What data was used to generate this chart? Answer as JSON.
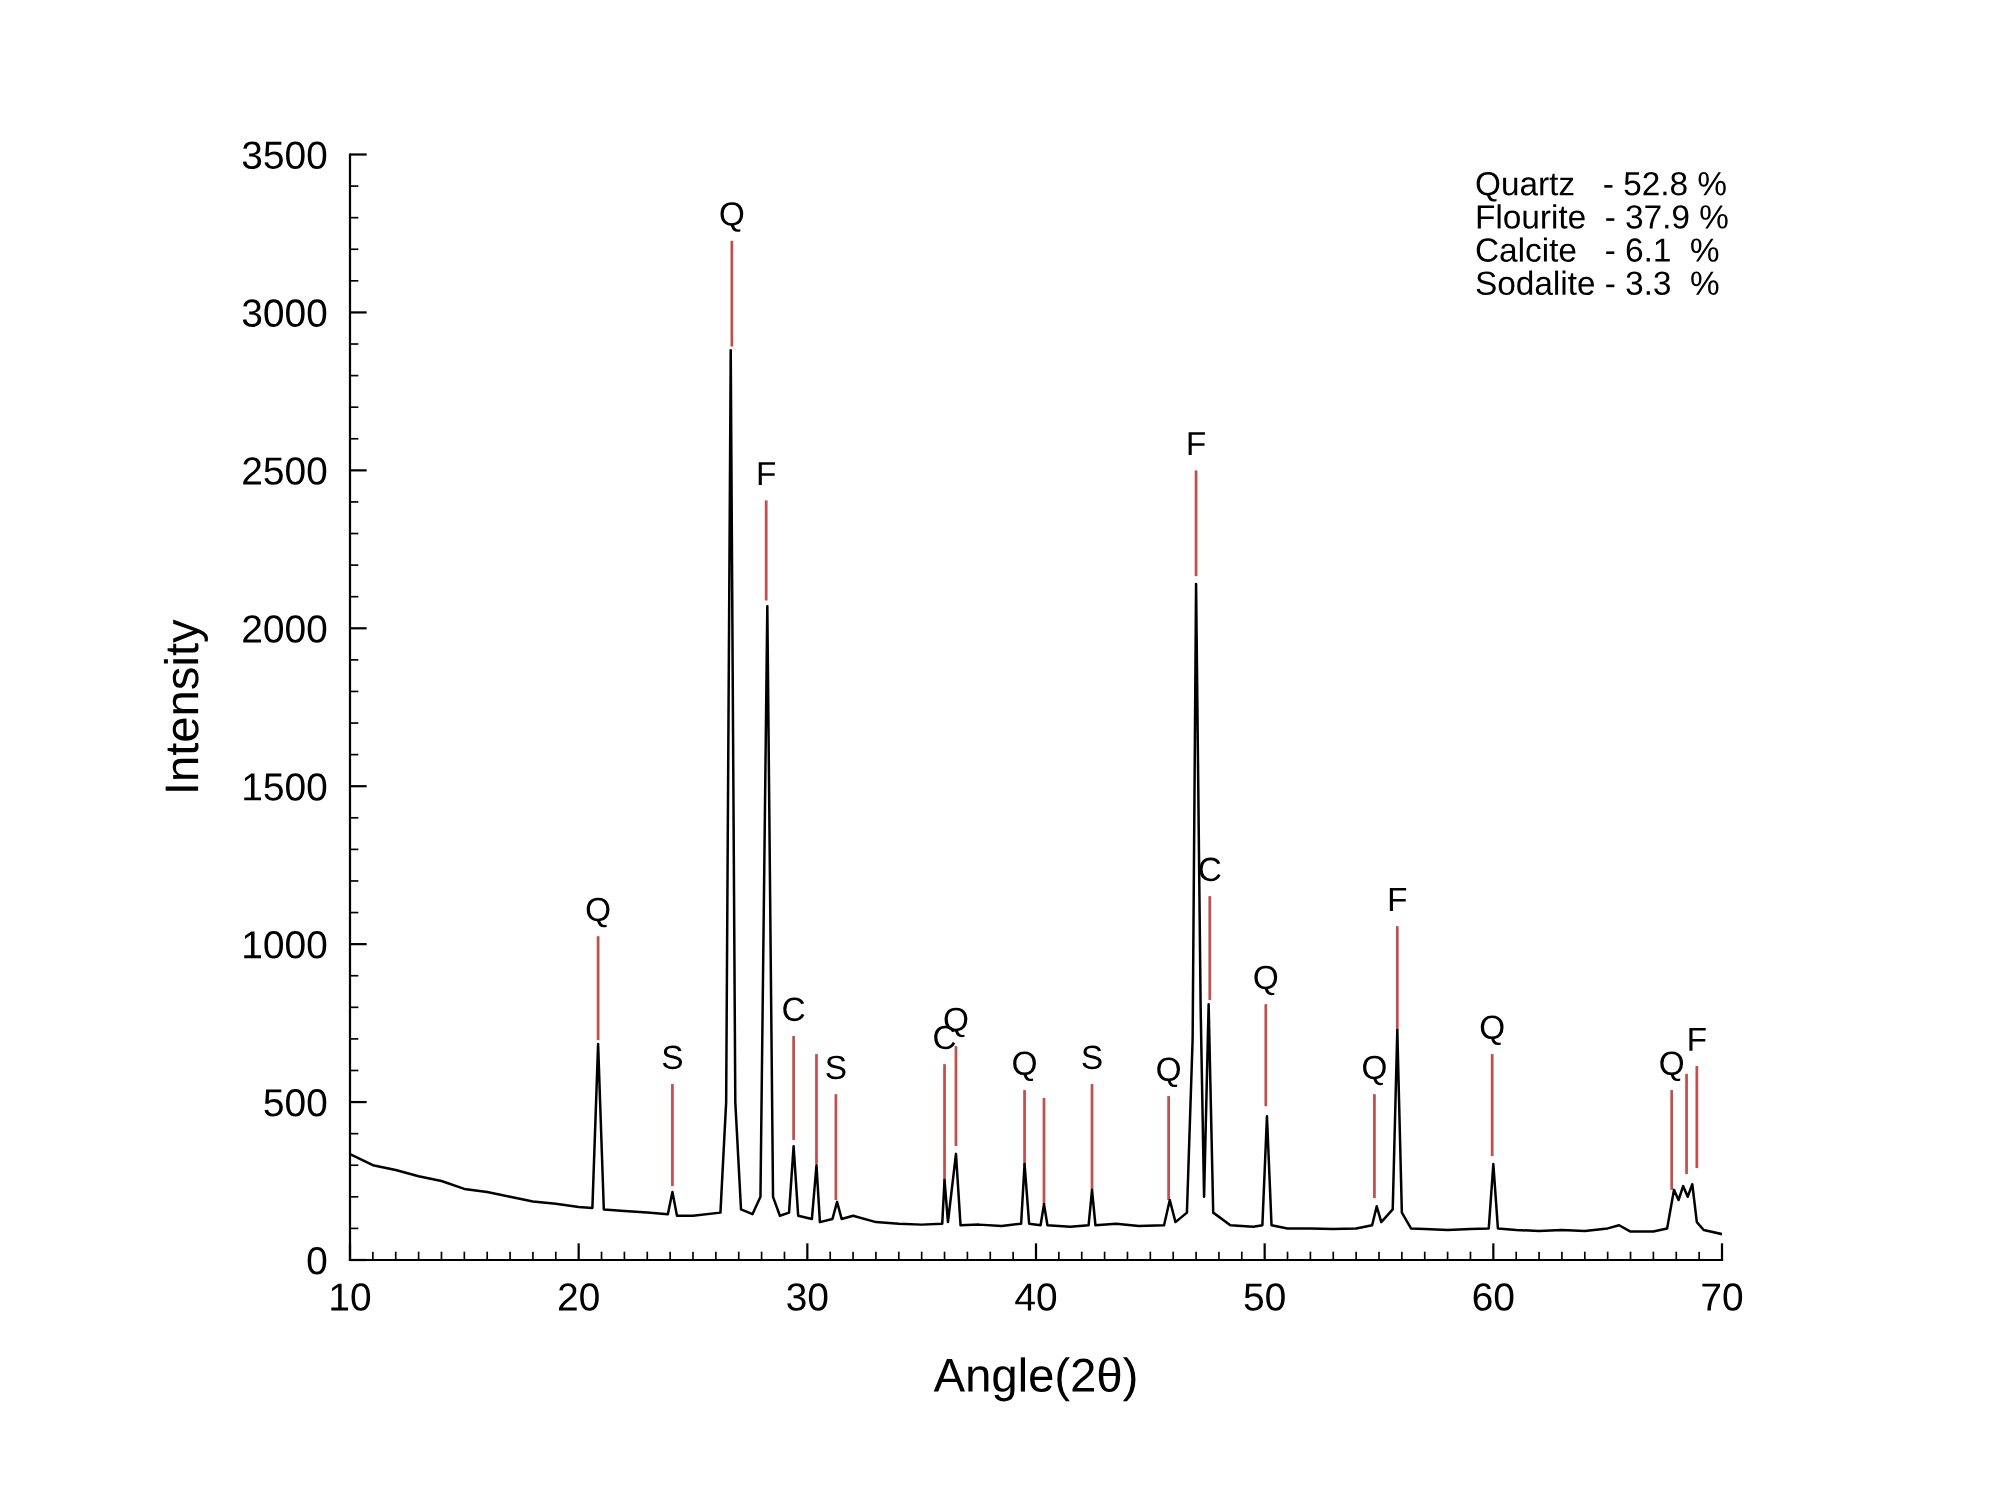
{
  "chart_data": {
    "type": "line",
    "xlabel": "Angle(2θ)",
    "ylabel": "Intensity",
    "xlim": [
      10,
      70
    ],
    "xticks": [
      10,
      20,
      30,
      40,
      50,
      60,
      70
    ],
    "ylim": [
      0,
      3500
    ],
    "yticks": [
      0,
      500,
      1000,
      1500,
      2000,
      2500,
      3000,
      3500
    ],
    "grid": false,
    "marker": "none",
    "line_style": "solid",
    "annotations": [
      "Quartz   - 52.8 %",
      "Flourite  - 37.9 %",
      "Calcite   - 6.1  %",
      "Sodalite - 3.3  %"
    ],
    "series": [
      {
        "color": "#000000",
        "x": [
          10,
          11,
          12,
          13,
          14,
          15,
          16,
          17,
          18,
          19,
          20,
          20.6,
          20.85,
          21.1,
          22,
          23,
          23.9,
          24.1,
          24.3,
          25,
          26.2,
          26.45,
          26.65,
          26.85,
          27.1,
          27.6,
          27.95,
          28.25,
          28.5,
          28.8,
          29.2,
          29.4,
          29.6,
          30.2,
          30.4,
          30.55,
          31.1,
          31.3,
          31.5,
          32,
          33,
          34,
          35,
          35.9,
          36.0,
          36.15,
          36.5,
          36.7,
          37.5,
          38.5,
          39.35,
          39.5,
          39.7,
          40.2,
          40.35,
          40.5,
          41.5,
          42.3,
          42.45,
          42.6,
          43.5,
          44.5,
          45.6,
          45.85,
          46.1,
          46.6,
          46.85,
          47.0,
          47.2,
          47.35,
          47.55,
          47.75,
          48.5,
          49.5,
          49.9,
          50.1,
          50.3,
          51,
          52,
          53,
          54,
          54.7,
          54.9,
          55.1,
          55.6,
          55.8,
          56,
          56.4,
          57,
          58,
          59,
          59.8,
          60.0,
          60.2,
          61,
          62,
          63,
          64,
          65,
          65.5,
          66,
          67,
          67.6,
          67.9,
          68.1,
          68.3,
          68.5,
          68.7,
          68.9,
          69.2,
          70
        ],
        "values": [
          335,
          300,
          285,
          265,
          250,
          225,
          215,
          200,
          185,
          178,
          168,
          165,
          684,
          160,
          155,
          150,
          145,
          215,
          140,
          140,
          150,
          500,
          2880,
          500,
          160,
          145,
          200,
          2070,
          200,
          140,
          150,
          360,
          140,
          130,
          300,
          120,
          130,
          184,
          130,
          140,
          120,
          115,
          112,
          115,
          253,
          120,
          336,
          110,
          112,
          108,
          115,
          304,
          115,
          110,
          177,
          110,
          105,
          110,
          222,
          110,
          115,
          108,
          110,
          190,
          120,
          150,
          700,
          2140,
          800,
          200,
          810,
          150,
          110,
          105,
          110,
          455,
          110,
          100,
          100,
          98,
          100,
          110,
          170,
          120,
          160,
          728,
          150,
          100,
          98,
          95,
          98,
          100,
          304,
          100,
          95,
          92,
          95,
          92,
          100,
          110,
          90,
          90,
          100,
          222,
          190,
          234,
          200,
          240,
          120,
          95,
          82
        ]
      },
      {
        "type": "bar",
        "color": "#c0504d",
        "x": [
          20.85,
          24.1,
          26.7,
          28.2,
          29.4,
          30.4,
          31.25,
          36.0,
          36.5,
          39.5,
          40.35,
          42.45,
          45.8,
          47.0,
          47.6,
          50.05,
          54.8,
          55.8,
          59.95,
          67.8,
          68.45,
          68.9
        ],
        "base": [
          696,
          234,
          2892,
          2088,
          380,
          304,
          190,
          240,
          361,
          297,
          177,
          222,
          190,
          2165,
          823,
          487,
          196,
          728,
          329,
          222,
          272,
          291
        ],
        "values": [
          329,
          323,
          335,
          317,
          329,
          348,
          335,
          380,
          316,
          241,
          336,
          335,
          329,
          335,
          329,
          323,
          329,
          329,
          323,
          316,
          317,
          323
        ],
        "value_labels": [
          "Q",
          "S",
          "Q",
          "F",
          "C",
          null,
          "S",
          "C",
          "Q",
          "Q",
          null,
          "S",
          "Q",
          "F",
          "C",
          "Q",
          "Q",
          "F",
          "Q",
          "Q",
          null,
          "F"
        ]
      }
    ]
  }
}
